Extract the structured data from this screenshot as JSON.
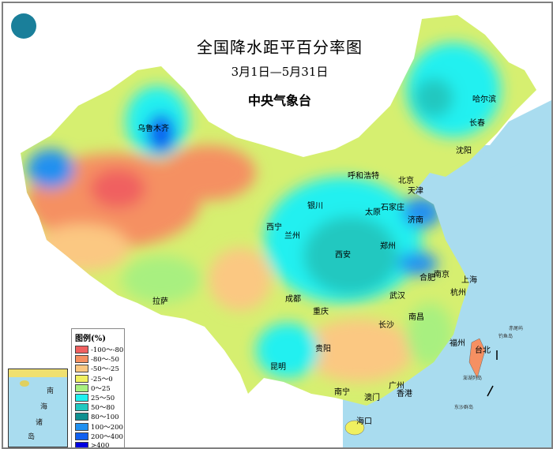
{
  "title": "全国降水距平百分率图",
  "date_range": "3月1日—5月31日",
  "issuer": "中央气象台",
  "logo": "china-meteorological-logo",
  "colors": {
    "sea": "#a9dcef",
    "border": "#808080"
  },
  "legend": {
    "title": "图例(%)",
    "items": [
      {
        "label": "-100～-80",
        "color": "#f06060"
      },
      {
        "label": "-80～-50",
        "color": "#f59062"
      },
      {
        "label": "-50～-25",
        "color": "#fbc882"
      },
      {
        "label": "-25～0",
        "color": "#f0f060"
      },
      {
        "label": "0～25",
        "color": "#a8f080"
      },
      {
        "label": "25～50",
        "color": "#20f0f0"
      },
      {
        "label": "50～80",
        "color": "#20c8c0"
      },
      {
        "label": "80～100",
        "color": "#109090"
      },
      {
        "label": "100～200",
        "color": "#2090f0"
      },
      {
        "label": "200～400",
        "color": "#1060f0"
      },
      {
        "label": ">400",
        "color": "#0000e0"
      }
    ]
  },
  "cities": [
    "乌鲁木齐",
    "哈尔滨",
    "长春",
    "沈阳",
    "北京",
    "天津",
    "呼和浩特",
    "石家庄",
    "太原",
    "济南",
    "银川",
    "西宁",
    "兰州",
    "郑州",
    "西安",
    "合肥",
    "南京",
    "上海",
    "成都",
    "武汉",
    "杭州",
    "重庆",
    "长沙",
    "南昌",
    "拉萨",
    "贵阳",
    "福州",
    "台北",
    "昆明",
    "南宁",
    "广州",
    "澳门",
    "香港",
    "海口"
  ],
  "islands": [
    "赤尾屿",
    "钓鱼岛",
    "澎湖列岛",
    "东沙群岛"
  ],
  "inset": {
    "chars": [
      "南",
      "海",
      "诸",
      "岛"
    ]
  }
}
